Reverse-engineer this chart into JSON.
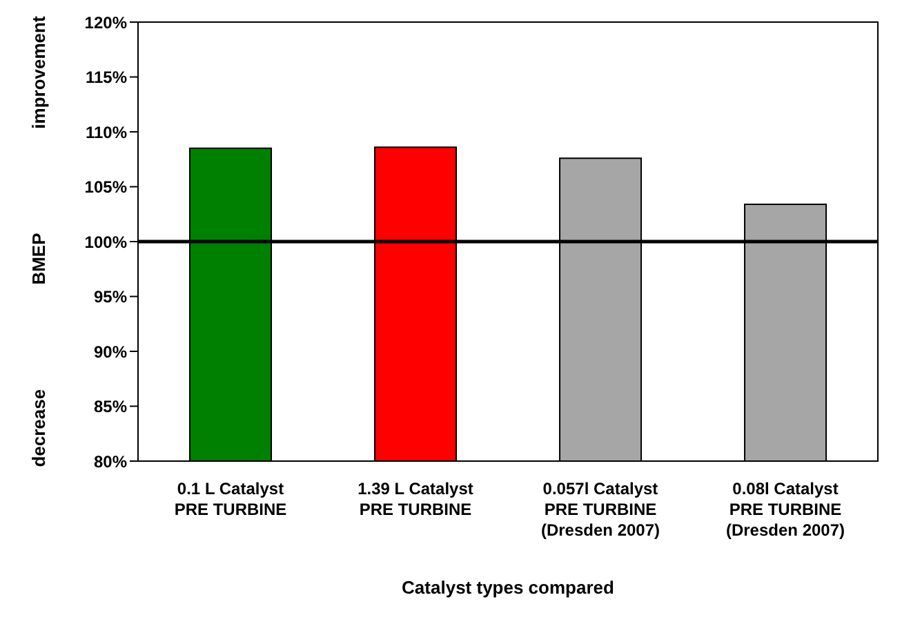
{
  "chart_data": {
    "type": "bar",
    "xlabel": "Catalyst types compared",
    "ylabel": "decrease BMEP improvement",
    "categories": [
      "0.1 L Catalyst\nPRE TURBINE",
      "1.39 L Catalyst\nPRE TURBINE",
      "0.057l Catalyst\nPRE TURBINE\n(Dresden 2007)",
      "0.08l Catalyst\nPRE TURBINE\n(Dresden 2007)"
    ],
    "values": [
      108.5,
      108.6,
      107.6,
      103.4
    ],
    "colors": [
      "#008000",
      "#ff0000",
      "#a6a6a6",
      "#a6a6a6"
    ],
    "ylim": [
      80,
      120
    ],
    "yticks": [
      {
        "value": 80,
        "label": "80%"
      },
      {
        "value": 85,
        "label": "85%"
      },
      {
        "value": 90,
        "label": "90%"
      },
      {
        "value": 95,
        "label": "95%"
      },
      {
        "value": 100,
        "label": "100%"
      },
      {
        "value": 105,
        "label": "105%"
      },
      {
        "value": 110,
        "label": "110%"
      },
      {
        "value": 115,
        "label": "115%"
      },
      {
        "value": 120,
        "label": "120%"
      }
    ],
    "ref_lines": [
      {
        "axis": "y",
        "value": 100,
        "color": "#000000"
      }
    ],
    "grid": false,
    "legend": false
  }
}
